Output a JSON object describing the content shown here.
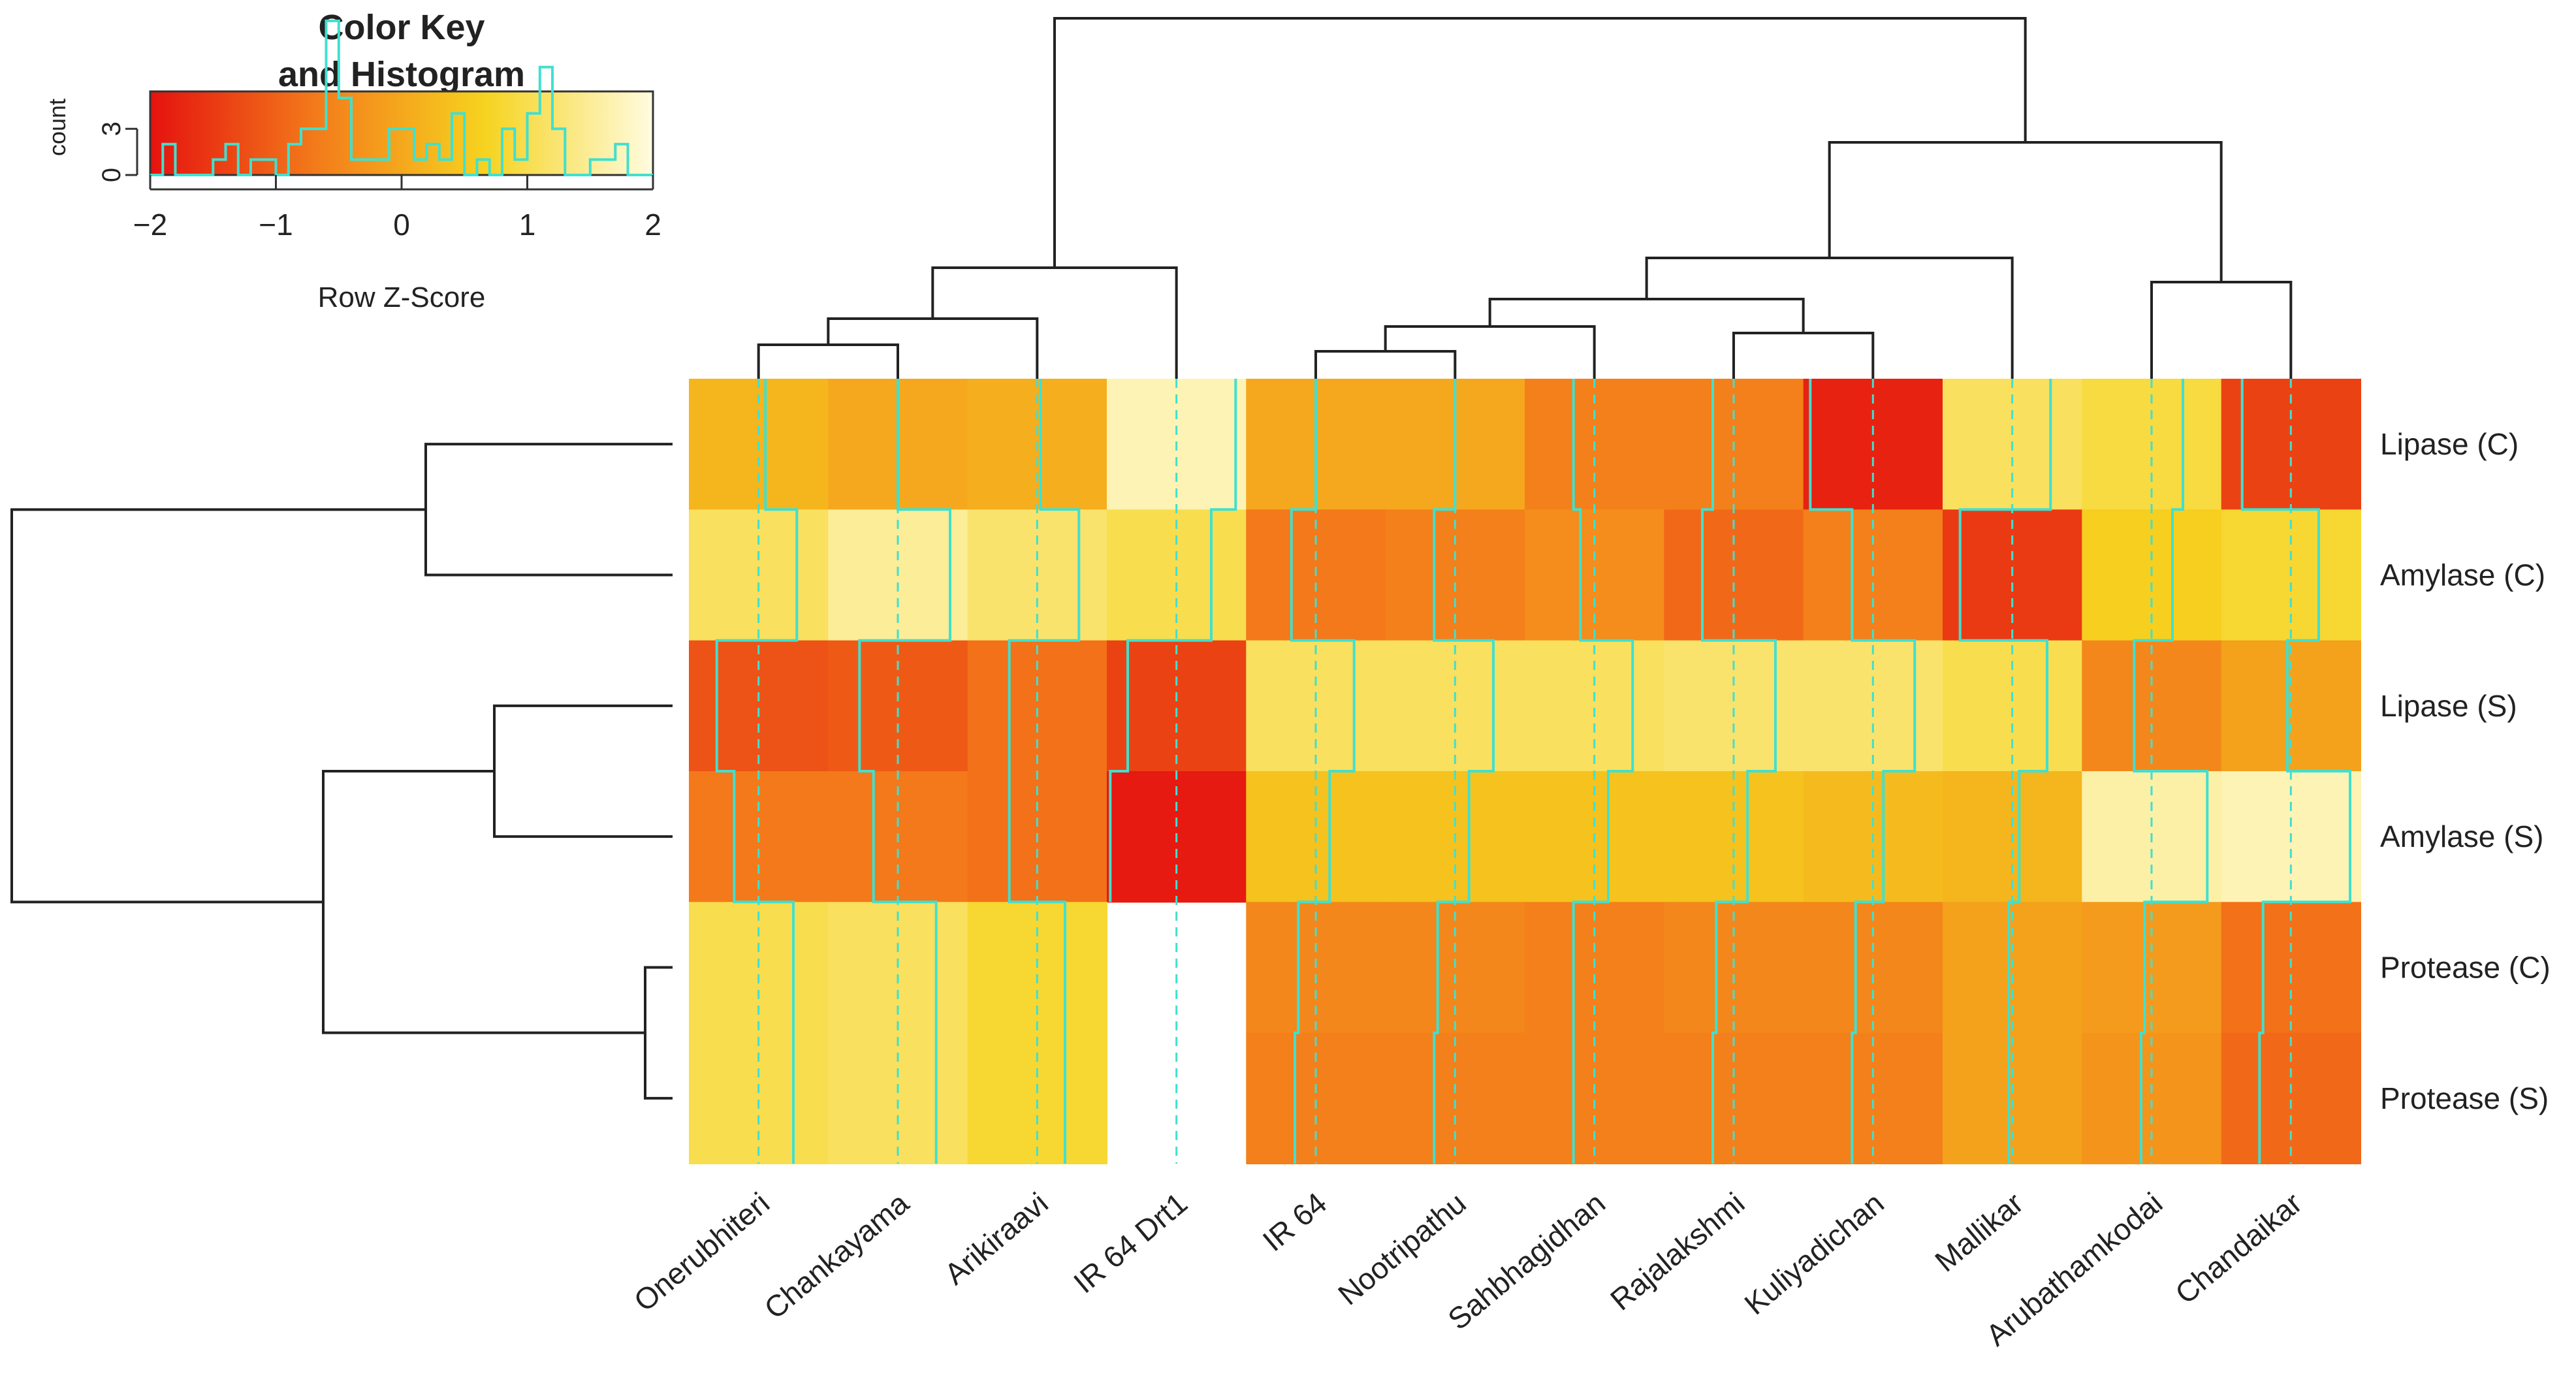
{
  "chart_data": {
    "type": "heatmap",
    "color_key": {
      "title_line1": "Color Key",
      "title_line2": "and Histogram",
      "ylabel": "count",
      "xlabel": "Row Z-Score",
      "ticks": [
        "−2",
        "−1",
        "0",
        "1",
        "2"
      ],
      "count_ticks": [
        "0",
        "3"
      ],
      "range": [
        -2,
        2
      ],
      "colors": [
        "#e5120f",
        "#f37c1a",
        "#f6d31f",
        "#fffce0"
      ],
      "histogram_color": "#40e0d0"
    },
    "columns": [
      "Onerubhiteri",
      "Chankayama",
      "Arikiraavi",
      "IR 64 Drt1",
      "IR 64",
      "Nootripathu",
      "Sahbhagidhan",
      "Rajalakshmi",
      "Kuliyadichan",
      "Mallikar",
      "Arubathamkodai",
      "Chandaikar"
    ],
    "rows": [
      "Lipase (C)",
      "Amylase (C)",
      "Lipase (S)",
      "Amylase (S)",
      "Protease  (C)",
      "Protease  (S)"
    ],
    "values": [
      [
        0.2,
        0.0,
        0.1,
        1.7,
        0.0,
        0.0,
        -0.6,
        -0.6,
        -1.8,
        1.1,
        0.9,
        -1.4
      ],
      [
        1.1,
        1.5,
        1.2,
        1.0,
        -0.7,
        -0.6,
        -0.4,
        -0.9,
        -0.6,
        -1.5,
        0.6,
        0.8
      ],
      [
        -1.2,
        -1.1,
        -0.8,
        -1.4,
        1.1,
        1.1,
        1.1,
        1.2,
        1.2,
        1.0,
        -0.5,
        -0.1
      ],
      [
        -0.7,
        -0.7,
        -0.8,
        -1.9,
        0.4,
        0.4,
        0.4,
        0.4,
        0.3,
        0.2,
        1.6,
        1.7
      ],
      [
        1.0,
        1.1,
        0.8,
        null,
        -0.5,
        -0.5,
        -0.6,
        -0.5,
        -0.5,
        -0.1,
        -0.2,
        -0.8
      ],
      [
        1.0,
        1.1,
        0.8,
        null,
        -0.6,
        -0.6,
        -0.6,
        -0.6,
        -0.6,
        -0.1,
        -0.3,
        -0.9
      ]
    ]
  }
}
